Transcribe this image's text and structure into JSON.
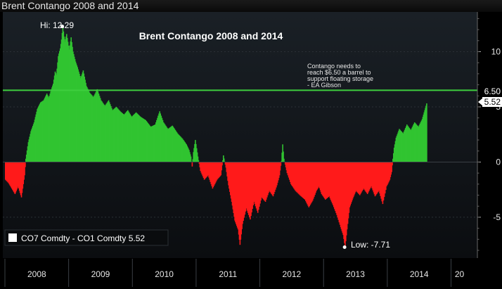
{
  "header": {
    "title": "Brent Contango 2008 and 2014"
  },
  "chart_data": {
    "type": "area",
    "title": "Brent Contango 2008 and 2014",
    "xlabel": "",
    "ylabel": "",
    "ylim": [
      -8.7,
      13.6
    ],
    "yticks": [
      {
        "value": 10,
        "label": "10"
      },
      {
        "value": 5,
        "label": "5"
      },
      {
        "value": 0,
        "label": "0"
      },
      {
        "value": -5,
        "label": "-5"
      }
    ],
    "x_labels": [
      "2008",
      "2009",
      "2010",
      "2011",
      "2012",
      "2013",
      "2014",
      "20"
    ],
    "grid": true,
    "legend": {
      "placement": "bottom-left",
      "text": "CO7 Comdty - CO1 Comdty 5.52"
    },
    "reference_line": {
      "value": 6.5,
      "label": "6.50",
      "color": "#3ecf3e"
    },
    "last_value": {
      "value": 5.52,
      "label": "5.52"
    },
    "annotations": {
      "high": {
        "label": "Hi: 12.29",
        "value": 12.29
      },
      "low": {
        "label": "Low: -7.71",
        "value": -7.71
      },
      "note": [
        "Contango needs to",
        "reach $6.50 a barrel to",
        "support floating storage",
        "- EA Gibson"
      ]
    },
    "colors": {
      "positive": "#31c431",
      "negative": "#ff1a1a",
      "background": "#000000",
      "panel": "#101418"
    },
    "series": [
      {
        "points": [
          [
            2008.0,
            -1.6
          ],
          [
            2008.05,
            -1.9
          ],
          [
            2008.1,
            -2.4
          ],
          [
            2008.15,
            -2.9
          ],
          [
            2008.2,
            -2.2
          ],
          [
            2008.25,
            -3.2
          ],
          [
            2008.3,
            -1.2
          ],
          [
            2008.32,
            0.3
          ],
          [
            2008.36,
            1.8
          ],
          [
            2008.4,
            2.8
          ],
          [
            2008.45,
            3.6
          ],
          [
            2008.5,
            4.8
          ],
          [
            2008.55,
            5.4
          ],
          [
            2008.6,
            5.6
          ],
          [
            2008.65,
            6.2
          ],
          [
            2008.68,
            5.8
          ],
          [
            2008.72,
            6.6
          ],
          [
            2008.75,
            7.1
          ],
          [
            2008.78,
            8.2
          ],
          [
            2008.8,
            7.9
          ],
          [
            2008.83,
            9.6
          ],
          [
            2008.86,
            10.3
          ],
          [
            2008.88,
            11.1
          ],
          [
            2008.9,
            12.29
          ],
          [
            2008.93,
            10.9
          ],
          [
            2008.96,
            11.6
          ],
          [
            2009.0,
            10.2
          ],
          [
            2009.03,
            11.3
          ],
          [
            2009.06,
            10.0
          ],
          [
            2009.1,
            9.1
          ],
          [
            2009.13,
            8.6
          ],
          [
            2009.18,
            7.6
          ],
          [
            2009.22,
            8.3
          ],
          [
            2009.27,
            6.9
          ],
          [
            2009.32,
            6.3
          ],
          [
            2009.38,
            5.9
          ],
          [
            2009.44,
            6.6
          ],
          [
            2009.5,
            5.6
          ],
          [
            2009.56,
            5.1
          ],
          [
            2009.62,
            5.6
          ],
          [
            2009.68,
            4.7
          ],
          [
            2009.74,
            5.0
          ],
          [
            2009.8,
            4.6
          ],
          [
            2009.86,
            4.3
          ],
          [
            2009.92,
            4.7
          ],
          [
            2009.98,
            4.1
          ],
          [
            2010.05,
            4.5
          ],
          [
            2010.12,
            4.1
          ],
          [
            2010.2,
            3.8
          ],
          [
            2010.28,
            3.2
          ],
          [
            2010.35,
            3.4
          ],
          [
            2010.42,
            4.6
          ],
          [
            2010.48,
            3.6
          ],
          [
            2010.55,
            3.0
          ],
          [
            2010.62,
            3.3
          ],
          [
            2010.7,
            2.6
          ],
          [
            2010.78,
            2.1
          ],
          [
            2010.84,
            1.6
          ],
          [
            2010.88,
            1.1
          ],
          [
            2010.91,
            0.5
          ],
          [
            2010.93,
            -0.4
          ],
          [
            2010.95,
            0.9
          ],
          [
            2010.98,
            2.0
          ],
          [
            2011.02,
            0.5
          ],
          [
            2011.06,
            -0.8
          ],
          [
            2011.12,
            -1.6
          ],
          [
            2011.18,
            -1.2
          ],
          [
            2011.25,
            -2.4
          ],
          [
            2011.32,
            -1.6
          ],
          [
            2011.38,
            -1.2
          ],
          [
            2011.42,
            0.6
          ],
          [
            2011.46,
            -0.5
          ],
          [
            2011.5,
            -2.1
          ],
          [
            2011.55,
            -3.6
          ],
          [
            2011.6,
            -5.3
          ],
          [
            2011.65,
            -6.1
          ],
          [
            2011.68,
            -7.5
          ],
          [
            2011.72,
            -5.6
          ],
          [
            2011.78,
            -4.2
          ],
          [
            2011.84,
            -5.2
          ],
          [
            2011.9,
            -3.6
          ],
          [
            2011.96,
            -4.6
          ],
          [
            2012.02,
            -3.2
          ],
          [
            2012.08,
            -3.6
          ],
          [
            2012.14,
            -2.6
          ],
          [
            2012.2,
            -3.1
          ],
          [
            2012.26,
            -2.1
          ],
          [
            2012.3,
            -1.2
          ],
          [
            2012.33,
            0.1
          ],
          [
            2012.35,
            1.6
          ],
          [
            2012.37,
            0.3
          ],
          [
            2012.42,
            -1.0
          ],
          [
            2012.48,
            -2.0
          ],
          [
            2012.55,
            -2.6
          ],
          [
            2012.62,
            -3.0
          ],
          [
            2012.7,
            -3.4
          ],
          [
            2012.76,
            -4.1
          ],
          [
            2012.82,
            -3.5
          ],
          [
            2012.88,
            -2.6
          ],
          [
            2012.92,
            -2.2
          ],
          [
            2012.96,
            -2.9
          ],
          [
            2013.02,
            -3.4
          ],
          [
            2013.08,
            -3.1
          ],
          [
            2013.14,
            -3.9
          ],
          [
            2013.2,
            -4.8
          ],
          [
            2013.26,
            -5.9
          ],
          [
            2013.3,
            -6.6
          ],
          [
            2013.33,
            -7.71
          ],
          [
            2013.36,
            -6.1
          ],
          [
            2013.4,
            -4.1
          ],
          [
            2013.45,
            -3.3
          ],
          [
            2013.5,
            -2.6
          ],
          [
            2013.56,
            -3.0
          ],
          [
            2013.62,
            -2.4
          ],
          [
            2013.68,
            -2.9
          ],
          [
            2013.74,
            -2.2
          ],
          [
            2013.8,
            -3.1
          ],
          [
            2013.86,
            -2.6
          ],
          [
            2013.92,
            -3.8
          ],
          [
            2013.98,
            -2.2
          ],
          [
            2014.03,
            -1.6
          ],
          [
            2014.06,
            -0.9
          ],
          [
            2014.08,
            0.3
          ],
          [
            2014.1,
            1.3
          ],
          [
            2014.13,
            2.2
          ],
          [
            2014.18,
            3.0
          ],
          [
            2014.24,
            2.6
          ],
          [
            2014.3,
            3.4
          ],
          [
            2014.36,
            2.9
          ],
          [
            2014.42,
            3.6
          ],
          [
            2014.48,
            3.2
          ],
          [
            2014.54,
            3.9
          ],
          [
            2014.58,
            4.7
          ],
          [
            2014.62,
            5.52
          ]
        ]
      }
    ]
  }
}
